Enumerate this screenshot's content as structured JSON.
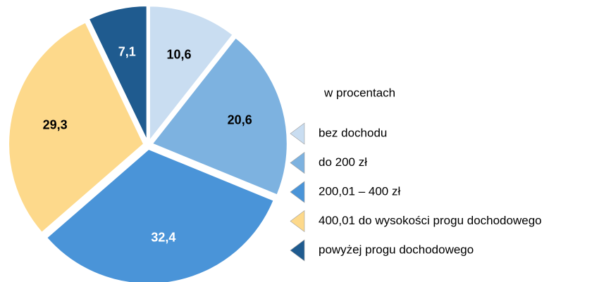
{
  "chart_data": {
    "type": "pie",
    "subtitle": "w procentach",
    "categories": [
      "bez dochodu",
      "do 200 zł",
      "200,01 – 400 zł",
      "400,01 do wysokości progu dochodowego",
      "powyżej progu dochodowego"
    ],
    "values": [
      10.6,
      20.6,
      32.4,
      29.3,
      7.1
    ],
    "value_labels": [
      "10,6",
      "20,6",
      "32,4",
      "29,3",
      "7,1"
    ],
    "colors": [
      "#c9ddf1",
      "#7db2e0",
      "#4a94d8",
      "#fdd98b",
      "#1f5b8f"
    ]
  }
}
